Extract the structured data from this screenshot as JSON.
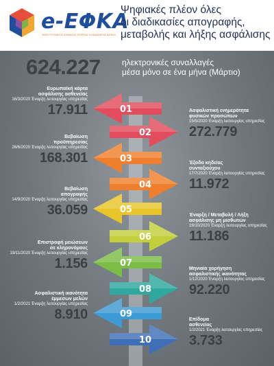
{
  "header": {
    "logo_text": "e-ΕΦΚΑ",
    "logo_subtitle": "ΗΛΕΚΤΡΟΝΙΚΟΣ ΕΘΝΙΚΟΣ ΦΟΡΕΑΣ ΚΟΙΝΩΝΙΚΗΣ ΑΣΦΑΛΙΣΗΣ",
    "title_line1": "Ψηφιακές πλέον όλες",
    "title_line2": "οι διαδικασίες απογραφής,",
    "title_line3": "μεταβολής και λήξης ασφάλισης"
  },
  "summary": {
    "total": "624.227",
    "desc_line1": "ηλεκτρονικές συναλλαγές",
    "desc_line2": "μέσα μόνο σε ένα μήνα (Μάρτιο)"
  },
  "colors": {
    "red": "#e24c5c",
    "orange": "#ef7f2d",
    "yellow": "#eac52a",
    "lime": "#c2cf3b",
    "green": "#7bbd45",
    "teal": "#2fa89e",
    "blue": "#3c9ad4",
    "darkblue": "#3f6fb7"
  },
  "items": [
    {
      "num": "01",
      "title_line1": "Ευρωπαϊκή κάρτα",
      "title_line2": "ασφάλισης ασθενείας",
      "date": "16/3/2020 Έναρξη λειτουργίας υπηρεσίας",
      "value": "17.911"
    },
    {
      "num": "02",
      "title_line1": "Ασφαλιστική ενημερότητα",
      "title_line2": "φυσικών προσώπων",
      "date": "15/5/2020 Έναρξη λειτουργίας υπηρεσίας",
      "value": "272.779"
    },
    {
      "num": "03",
      "title_line1": "Βεβαίωση",
      "title_line2": "προϋπηρεσίας",
      "date": "26/6/2020 Έναρξη λειτουργίας υπηρεσίας",
      "value": "168.301"
    },
    {
      "num": "04",
      "title_line1": "Έξοδα κηδείας",
      "title_line2": "συνταξιούχου",
      "date": "17/7/2020 Έναρξη λειτουργίας υπηρεσίας",
      "value": "11.972"
    },
    {
      "num": "05",
      "title_line1": "Βεβαίωση",
      "title_line2": "απογραφής",
      "date": "14/9/2020 Έναρξη λειτουργίας υπηρεσίας",
      "value": "36.059"
    },
    {
      "num": "06",
      "title_line1": "Έναρξη / Μεταβολή / Λήξη",
      "title_line2": "ασφάλισης μη μισθωτών",
      "date": "19/10/2020 Έναρξη λειτουργίας υπηρεσίας",
      "value": "11.186"
    },
    {
      "num": "07",
      "title_line1": "Επιστροφή μειώσεων",
      "title_line2": "σε κληρονόμους",
      "date": "19/11/2020 Έναρξη λειτουργίας υπηρεσίας",
      "value": "1.156"
    },
    {
      "num": "08",
      "title_line1": "Μηνιαία χορήγηση",
      "title_line2": "ασφαλιστικής ικανότητας",
      "date": "1/12/2020 Έναρξη λειτουργίας υπηρεσίας",
      "value": "92.220"
    },
    {
      "num": "09",
      "title_line1": "Ασφαλιστική ικανότητα",
      "title_line2": "έμμεσων μελών",
      "date": "1/2/2021 Έναρξη λειτουργίας υπηρεσίας",
      "value": "8.910"
    },
    {
      "num": "10",
      "title_line1": "Επίδομα",
      "title_line2": "ασθενείας",
      "date": "1/2/2021 Έναρξη λειτουργίας υπηρεσίας",
      "value": "3.733"
    }
  ]
}
